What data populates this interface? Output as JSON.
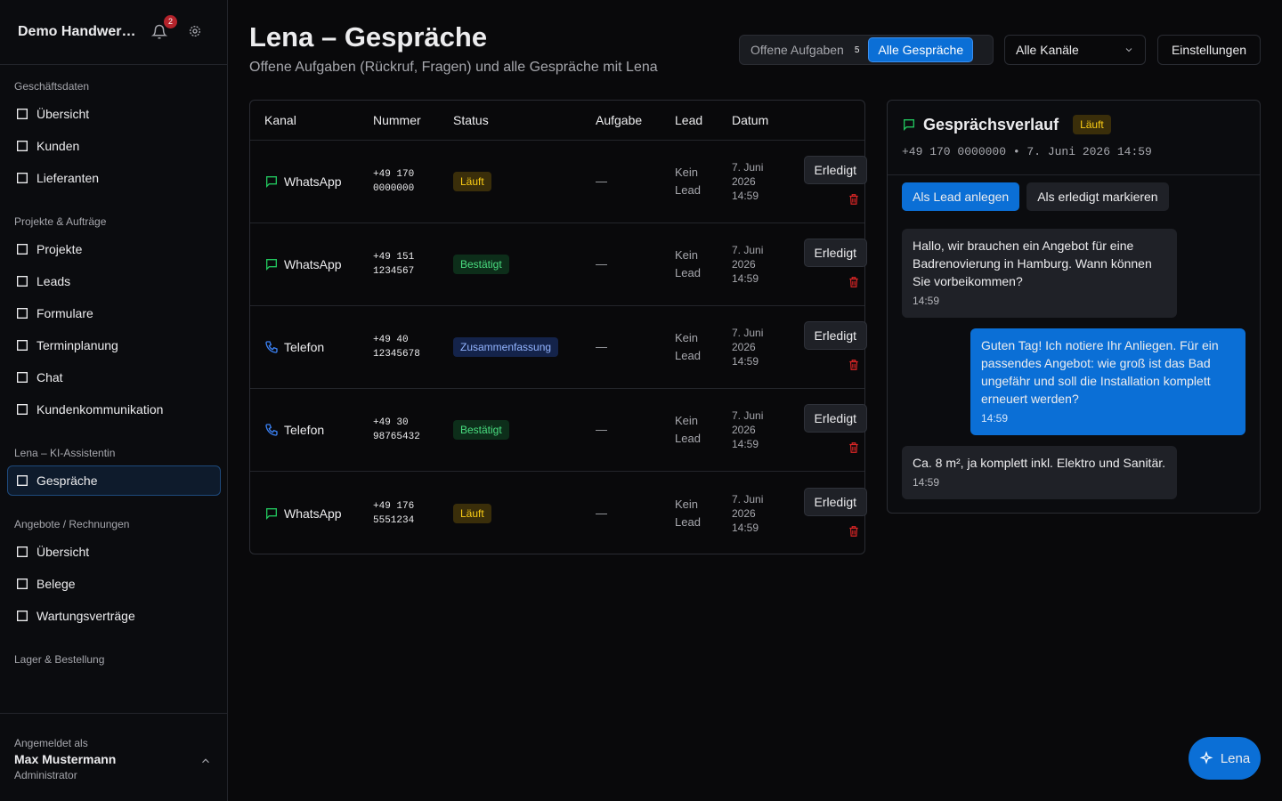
{
  "sidebar": {
    "brand": "Demo Handwer…",
    "notifications": 2,
    "sections": [
      {
        "title": "Geschäftsdaten",
        "items": [
          "Übersicht",
          "Kunden",
          "Lieferanten"
        ]
      },
      {
        "title": "Projekte & Aufträge",
        "items": [
          "Projekte",
          "Leads",
          "Formulare",
          "Terminplanung",
          "Chat",
          "Kundenkommunikation"
        ]
      },
      {
        "title": "Lena – KI-Assistentin",
        "items": [
          "Gespräche"
        ]
      },
      {
        "title": "Angebote / Rechnungen",
        "items": [
          "Übersicht",
          "Belege",
          "Wartungsverträge"
        ]
      },
      {
        "title": "Lager & Bestellung",
        "items": []
      }
    ],
    "user": {
      "label": "Angemeldet als",
      "name": "Max Mustermann",
      "role": "Administrator"
    }
  },
  "header": {
    "title": "Lena – Gespräche",
    "subtitle": "Offene Aufgaben (Rückruf, Fragen) und alle Gespräche mit Lena"
  },
  "toolbar": {
    "tabs": [
      {
        "label": "Offene Aufgaben",
        "count": 5
      },
      {
        "label": "Alle Gespräche"
      }
    ],
    "channel": "Alle Kanäle",
    "settings": "Einstellungen"
  },
  "table": {
    "columns": [
      "Kanal",
      "Nummer",
      "Status",
      "Aufgabe",
      "Lead",
      "Datum"
    ],
    "rows": [
      {
        "channel": "WhatsApp",
        "number": "+49 170 0000000",
        "status": "Läuft",
        "task": "—",
        "lead": "Kein Lead",
        "date": "7. Juni 2026 14:59",
        "action": "Erledigt"
      },
      {
        "channel": "WhatsApp",
        "number": "+49 151 1234567",
        "status": "Bestätigt",
        "task": "—",
        "lead": "Kein Lead",
        "date": "7. Juni 2026 14:59",
        "action": "Erledigt"
      },
      {
        "channel": "Telefon",
        "number": "+49 40 12345678",
        "status": "Zusammenfassung",
        "task": "—",
        "lead": "Kein Lead",
        "date": "7. Juni 2026 14:59",
        "action": "Erledigt"
      },
      {
        "channel": "Telefon",
        "number": "+49 30 98765432",
        "status": "Bestätigt",
        "task": "—",
        "lead": "Kein Lead",
        "date": "7. Juni 2026 14:59",
        "action": "Erledigt"
      },
      {
        "channel": "WhatsApp",
        "number": "+49 176 5551234",
        "status": "Läuft",
        "task": "—",
        "lead": "Kein Lead",
        "date": "7. Juni 2026 14:59",
        "action": "Erledigt"
      }
    ]
  },
  "detail": {
    "title": "Gesprächsverlauf",
    "status": "Läuft",
    "meta": "+49 170 0000000 • 7. Juni 2026 14:59",
    "buttons": [
      "Als Lead anlegen",
      "Als erledigt markieren"
    ],
    "messages": [
      {
        "text": "Hallo, wir brauchen ein Angebot für eine Badrenovierung in Hamburg. Wann können Sie vorbeikommen?",
        "time": "14:59"
      },
      {
        "text": "Guten Tag! Ich notiere Ihr Anliegen. Für ein passendes Angebot: wie groß ist das Bad ungefähr und soll die Installation komplett erneuert werden?",
        "time": "14:59"
      },
      {
        "text": "Ca. 8 m², ja komplett inkl. Elektro und Sanitär.",
        "time": "14:59"
      }
    ]
  },
  "fab": "Lena"
}
